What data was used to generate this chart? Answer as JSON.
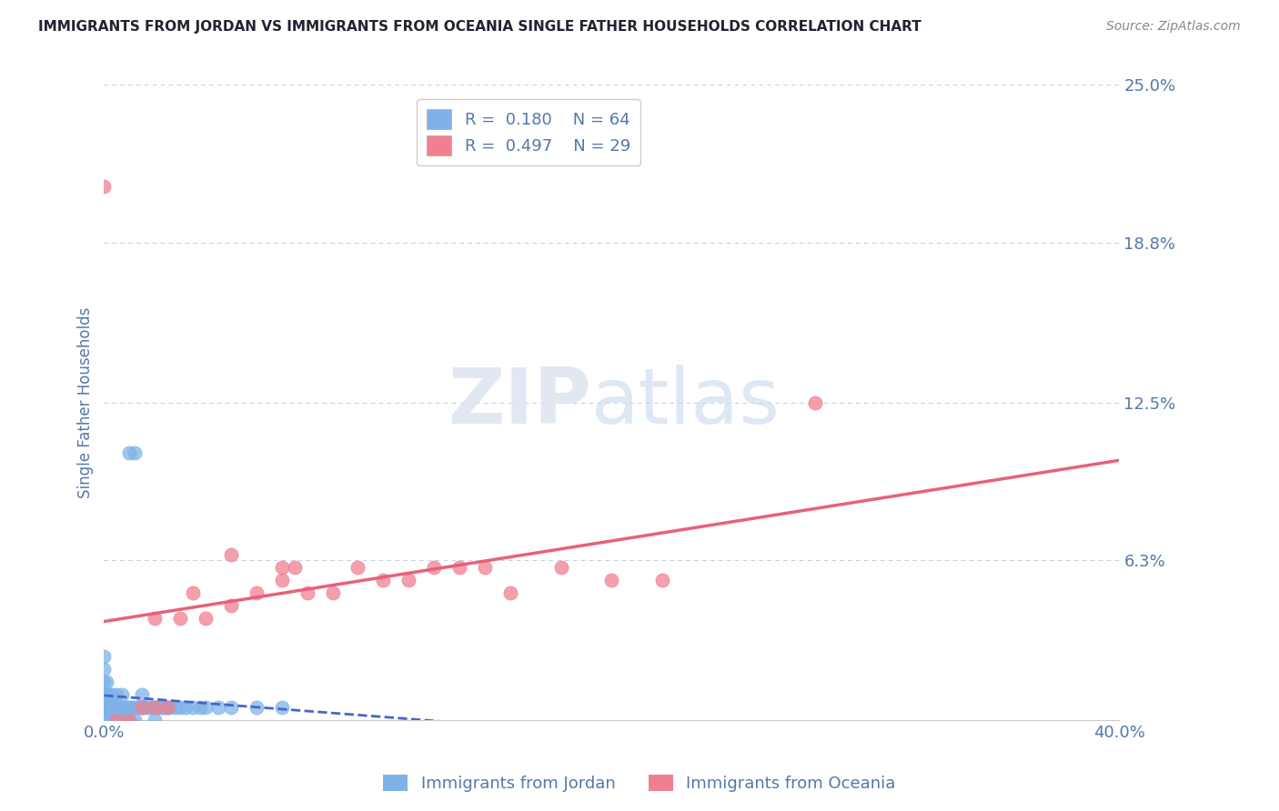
{
  "title": "IMMIGRANTS FROM JORDAN VS IMMIGRANTS FROM OCEANIA SINGLE FATHER HOUSEHOLDS CORRELATION CHART",
  "source": "Source: ZipAtlas.com",
  "ylabel": "Single Father Households",
  "xlim": [
    0.0,
    0.4
  ],
  "ylim": [
    0.0,
    0.25
  ],
  "ytick_vals": [
    0.0,
    0.063,
    0.125,
    0.188,
    0.25
  ],
  "ytick_labels": [
    "",
    "6.3%",
    "12.5%",
    "18.8%",
    "25.0%"
  ],
  "xtick_vals": [
    0.0,
    0.4
  ],
  "xtick_labels": [
    "0.0%",
    "40.0%"
  ],
  "jordan_color": "#7fb3e8",
  "oceania_color": "#f08090",
  "jordan_line_color": "#4466cc",
  "oceania_line_color": "#e8607a",
  "jordan_R": 0.18,
  "jordan_N": 64,
  "oceania_R": 0.497,
  "oceania_N": 29,
  "watermark_zip": "ZIP",
  "watermark_atlas": "atlas",
  "background_color": "#ffffff",
  "grid_color": "#c8d4e8",
  "title_color": "#222233",
  "axis_label_color": "#5577aa",
  "legend_label_color": "#5577aa",
  "jordan_x": [
    0.0,
    0.0,
    0.0,
    0.0,
    0.0,
    0.0,
    0.0,
    0.0,
    0.0,
    0.0,
    0.001,
    0.001,
    0.001,
    0.001,
    0.002,
    0.002,
    0.002,
    0.003,
    0.003,
    0.004,
    0.004,
    0.005,
    0.005,
    0.005,
    0.006,
    0.006,
    0.007,
    0.007,
    0.008,
    0.008,
    0.009,
    0.01,
    0.01,
    0.011,
    0.012,
    0.012,
    0.013,
    0.014,
    0.015,
    0.015,
    0.016,
    0.017,
    0.018,
    0.019,
    0.02,
    0.02,
    0.021,
    0.022,
    0.023,
    0.024,
    0.025,
    0.026,
    0.028,
    0.03,
    0.032,
    0.035,
    0.038,
    0.04,
    0.045,
    0.05,
    0.06,
    0.07,
    0.01,
    0.012
  ],
  "jordan_y": [
    0.0,
    0.0,
    0.0,
    0.0,
    0.005,
    0.005,
    0.01,
    0.015,
    0.02,
    0.025,
    0.0,
    0.005,
    0.01,
    0.015,
    0.0,
    0.005,
    0.01,
    0.005,
    0.01,
    0.0,
    0.005,
    0.0,
    0.005,
    0.01,
    0.0,
    0.005,
    0.005,
    0.01,
    0.0,
    0.005,
    0.005,
    0.0,
    0.005,
    0.005,
    0.0,
    0.005,
    0.005,
    0.005,
    0.005,
    0.01,
    0.005,
    0.005,
    0.005,
    0.005,
    0.0,
    0.005,
    0.005,
    0.005,
    0.005,
    0.005,
    0.005,
    0.005,
    0.005,
    0.005,
    0.005,
    0.005,
    0.005,
    0.005,
    0.005,
    0.005,
    0.005,
    0.005,
    0.105,
    0.105
  ],
  "oceania_x": [
    0.0,
    0.005,
    0.01,
    0.015,
    0.02,
    0.02,
    0.025,
    0.03,
    0.035,
    0.04,
    0.05,
    0.06,
    0.07,
    0.075,
    0.08,
    0.09,
    0.1,
    0.11,
    0.12,
    0.13,
    0.14,
    0.15,
    0.16,
    0.18,
    0.2,
    0.22,
    0.28,
    0.05,
    0.07
  ],
  "oceania_y": [
    0.21,
    0.0,
    0.0,
    0.005,
    0.005,
    0.04,
    0.005,
    0.04,
    0.05,
    0.04,
    0.045,
    0.05,
    0.055,
    0.06,
    0.05,
    0.05,
    0.06,
    0.055,
    0.055,
    0.06,
    0.06,
    0.06,
    0.05,
    0.06,
    0.055,
    0.055,
    0.125,
    0.065,
    0.06
  ]
}
